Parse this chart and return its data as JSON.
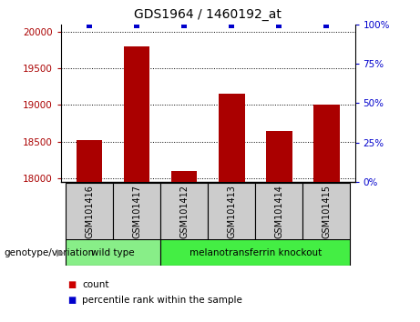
{
  "title": "GDS1964 / 1460192_at",
  "samples": [
    "GSM101416",
    "GSM101417",
    "GSM101412",
    "GSM101413",
    "GSM101414",
    "GSM101415"
  ],
  "counts": [
    18520,
    19800,
    18100,
    19150,
    18650,
    19000
  ],
  "percentiles": [
    99,
    99,
    99,
    99,
    99,
    99
  ],
  "ylim_left": [
    17950,
    20100
  ],
  "ylim_right": [
    0,
    100
  ],
  "yticks_left": [
    18000,
    18500,
    19000,
    19500,
    20000
  ],
  "yticks_right": [
    0,
    25,
    50,
    75,
    100
  ],
  "bar_color": "#aa0000",
  "dot_color": "#0000cc",
  "groups": [
    {
      "label": "wild type",
      "indices": [
        0,
        1
      ],
      "color": "#88ee88"
    },
    {
      "label": "melanotransferrin knockout",
      "indices": [
        2,
        3,
        4,
        5
      ],
      "color": "#44ee44"
    }
  ],
  "legend_count_color": "#cc0000",
  "legend_pct_color": "#0000cc",
  "bar_width": 0.55
}
